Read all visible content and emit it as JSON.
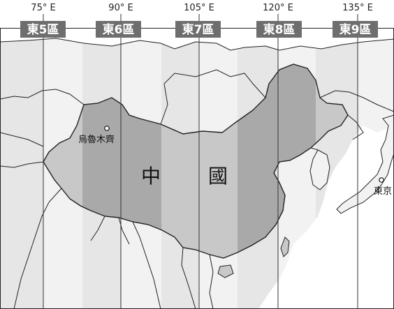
{
  "map": {
    "colors": {
      "ocean": "#ffffff",
      "land_other": "#f2f2f2",
      "zone_light": "#e6e6e6",
      "zone_dark": "#d2d2d2",
      "china_light": "#c8c8c8",
      "china_dark": "#a9a9a9",
      "label_box": "#6e6e6e",
      "border": "#222222"
    },
    "longitudes": [
      {
        "label": "75° E"
      },
      {
        "label": "90° E"
      },
      {
        "label": "105° E"
      },
      {
        "label": "120° E"
      },
      {
        "label": "135° E"
      }
    ],
    "time_zones": [
      {
        "label": "東5區"
      },
      {
        "label": "東6區"
      },
      {
        "label": "東7區"
      },
      {
        "label": "東8區"
      },
      {
        "label": "東9區"
      }
    ],
    "country_label": {
      "part1": "中",
      "part2": "國"
    },
    "cities": [
      {
        "name": "烏魯木齊"
      },
      {
        "name": "東京"
      }
    ]
  }
}
